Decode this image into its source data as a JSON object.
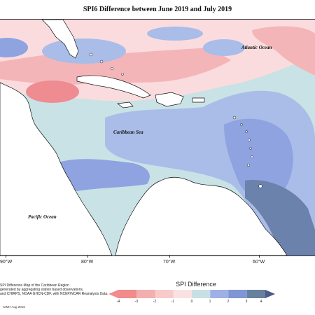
{
  "title": "SPI6 Difference between June 2019 and July 2019",
  "ocean_labels": {
    "atlantic": "Atlantic Ocean",
    "caribbean": "Caribbean Sea",
    "pacific": "Pacific Ocean"
  },
  "longitude_labels": [
    "90°W",
    "80°W",
    "70°W",
    "60°W"
  ],
  "notes": {
    "line1": "SPI Difference Map of the Caribbean Region",
    "line2": "generated by aggregating station based observations,",
    "line3": "and CHIRPS, NOAA GHCN-CDF, with NCEP/NCAR Reanalysis Data."
  },
  "legend": {
    "title": "SPI Difference",
    "ticks": [
      "-4",
      "-3",
      "-2",
      "-1",
      "0",
      "1",
      "2",
      "3",
      "4"
    ],
    "colors": [
      "#f28c8c",
      "#f5aeae",
      "#f8caca",
      "#fbe2e2",
      "#c7e0e4",
      "#9fb0e6",
      "#7f96d4",
      "#66809e",
      "#4a5a8c"
    ]
  },
  "credit": "CIMH Aug 2019",
  "colors": {
    "dry_strong": "#ee8c92",
    "dry_mid": "#f4b5b9",
    "dry_light": "#fbdcde",
    "neutral": "#c9e2e5",
    "wet_light": "#a9bde8",
    "wet_mid": "#8ea3e0",
    "wet_strong": "#6b82ac",
    "land": "#ffffff"
  }
}
